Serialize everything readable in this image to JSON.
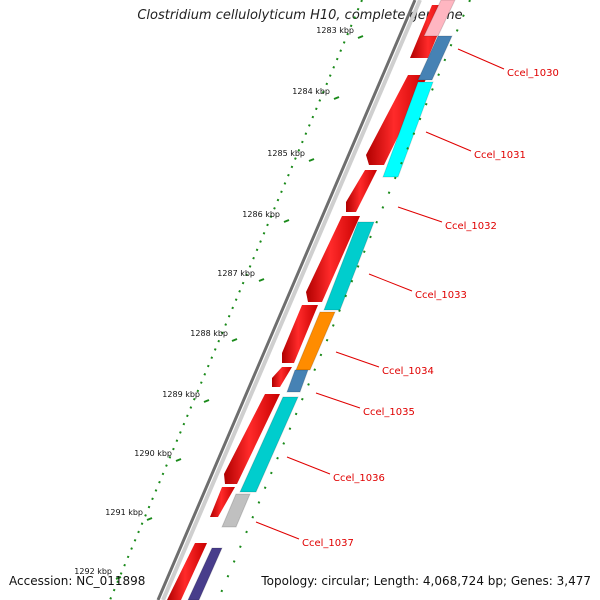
{
  "title": "Clostridium cellulolyticum H10, complete genome",
  "accession": "Accession: NC_011898",
  "topology": "Topology: circular; Length: 4,068,724 bp; Genes: 3,477",
  "colors": {
    "cds_forward": "#ff0000",
    "backbone": "#888888",
    "tick": "#2e8b2e",
    "label_line": "#e00000"
  },
  "scale_labels": [
    "1283 kbp",
    "1284 kbp",
    "1285 kbp",
    "1286 kbp",
    "1287 kbp",
    "1288 kbp",
    "1289 kbp",
    "1290 kbp",
    "1291 kbp",
    "1292 kbp"
  ],
  "gene_labels": [
    "Ccel_1030",
    "Ccel_1031",
    "Ccel_1032",
    "Ccel_1033",
    "Ccel_1034",
    "Ccel_1035",
    "Ccel_1036",
    "Ccel_1037"
  ],
  "reverse_features": [
    {
      "color": "#ffb6c1"
    },
    {
      "color": "#4682b4"
    },
    {
      "color": "#00ffff"
    },
    {
      "color": "#00cdcd"
    },
    {
      "color": "#ff8c00"
    },
    {
      "color": "#4682b4"
    },
    {
      "color": "#00cdcd"
    },
    {
      "color": "#c0c0c0"
    },
    {
      "color": "#483d8b"
    }
  ]
}
